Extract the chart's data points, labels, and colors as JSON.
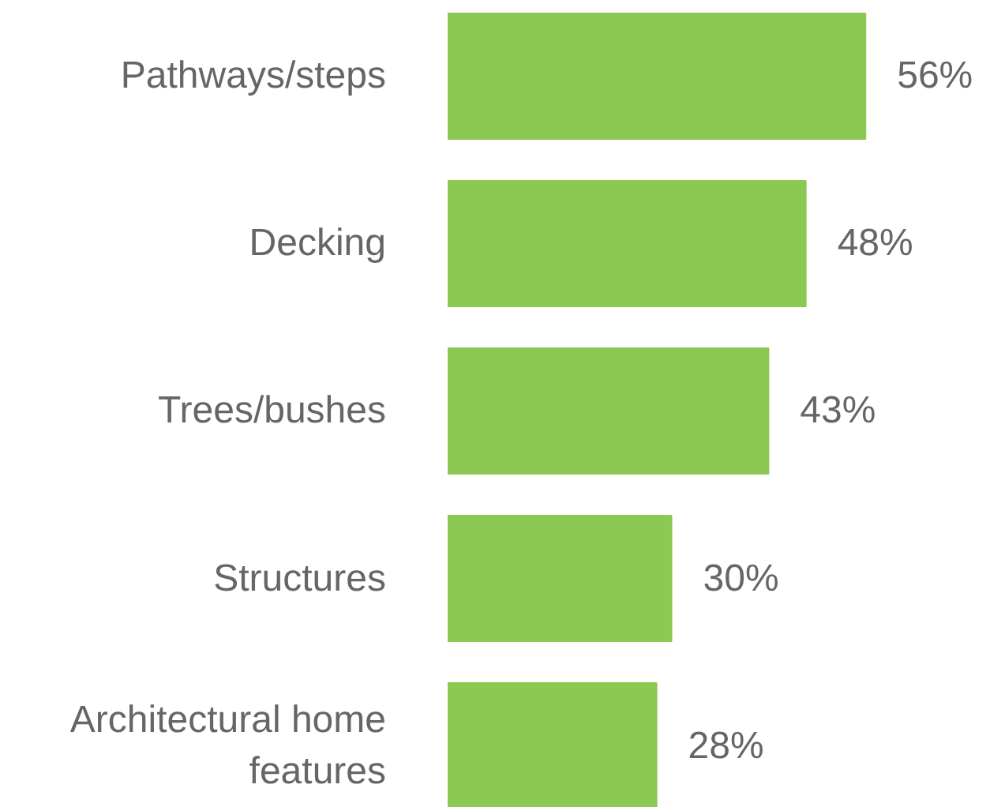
{
  "chart_data": {
    "type": "bar",
    "orientation": "horizontal",
    "categories": [
      "Pathways/steps",
      "Decking",
      "Trees/bushes",
      "Structures",
      "Architectural home features"
    ],
    "values": [
      56,
      48,
      43,
      30,
      28
    ],
    "value_labels": [
      "56%",
      "48%",
      "43%",
      "30%",
      "28%"
    ],
    "color": "#8bc952",
    "tick_labels": "y"
  }
}
